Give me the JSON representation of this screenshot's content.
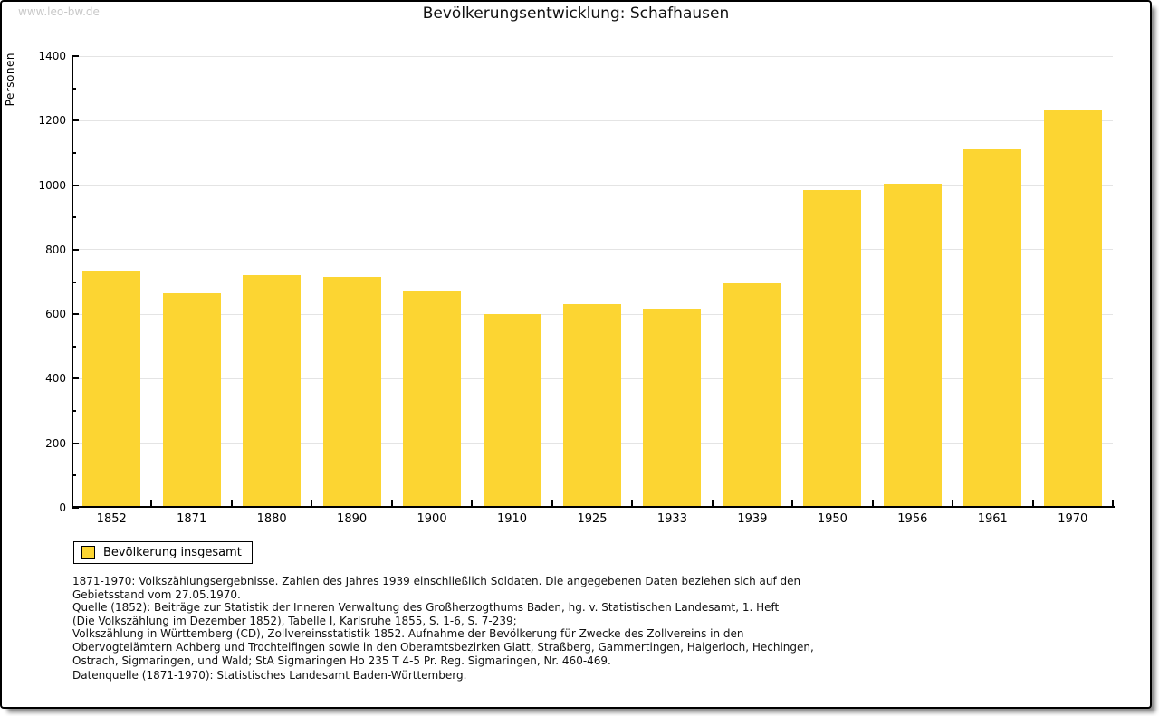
{
  "watermark": "www.leo-bw.de",
  "title": "Bevölkerungsentwicklung: Schafhausen",
  "chart_data": {
    "type": "bar",
    "title": "Bevölkerungsentwicklung: Schafhausen",
    "xlabel": "",
    "ylabel": "Personen",
    "categories": [
      "1852",
      "1871",
      "1880",
      "1890",
      "1900",
      "1910",
      "1925",
      "1933",
      "1939",
      "1950",
      "1956",
      "1961",
      "1970"
    ],
    "values": [
      730,
      658,
      716,
      710,
      666,
      595,
      625,
      612,
      690,
      980,
      1000,
      1105,
      1230
    ],
    "ylim": [
      0,
      1400
    ],
    "ytick_step": 200,
    "yminor_step": 100,
    "grid": true,
    "legend_position": "bottom-left",
    "bar_color": "#FCD532",
    "axis_color": "#000000",
    "grid_color": "#e4e4e4"
  },
  "legend": {
    "label": "Bevölkerung insgesamt",
    "swatch_color": "#FCD532"
  },
  "footnotes": [
    "1871-1970: Volkszählungsergebnisse. Zahlen des Jahres 1939 einschließlich Soldaten. Die angegebenen Daten beziehen sich auf den",
    "Gebietsstand vom 27.05.1970.",
    "Quelle (1852): Beiträge zur Statistik der Inneren Verwaltung des Großherzogthums Baden, hg. v. Statistischen Landesamt, 1. Heft",
    "(Die Volkszählung im Dezember 1852), Tabelle I, Karlsruhe 1855, S. 1-6, S. 7-239;",
    "Volkszählung in Württemberg (CD), Zollvereinsstatistik 1852. Aufnahme der Bevölkerung für Zwecke des Zollvereins in den",
    "Obervogteiämtern Achberg und Trochtelfingen sowie in den Oberamtsbezirken Glatt, Straßberg, Gammertingen, Haigerloch, Hechingen,",
    "Ostrach, Sigmaringen, und Wald; StA Sigmaringen Ho 235 T 4-5 Pr. Reg. Sigmaringen, Nr. 460-469."
  ],
  "datasource": "Datenquelle (1871-1970): Statistisches Landesamt Baden-Württemberg."
}
